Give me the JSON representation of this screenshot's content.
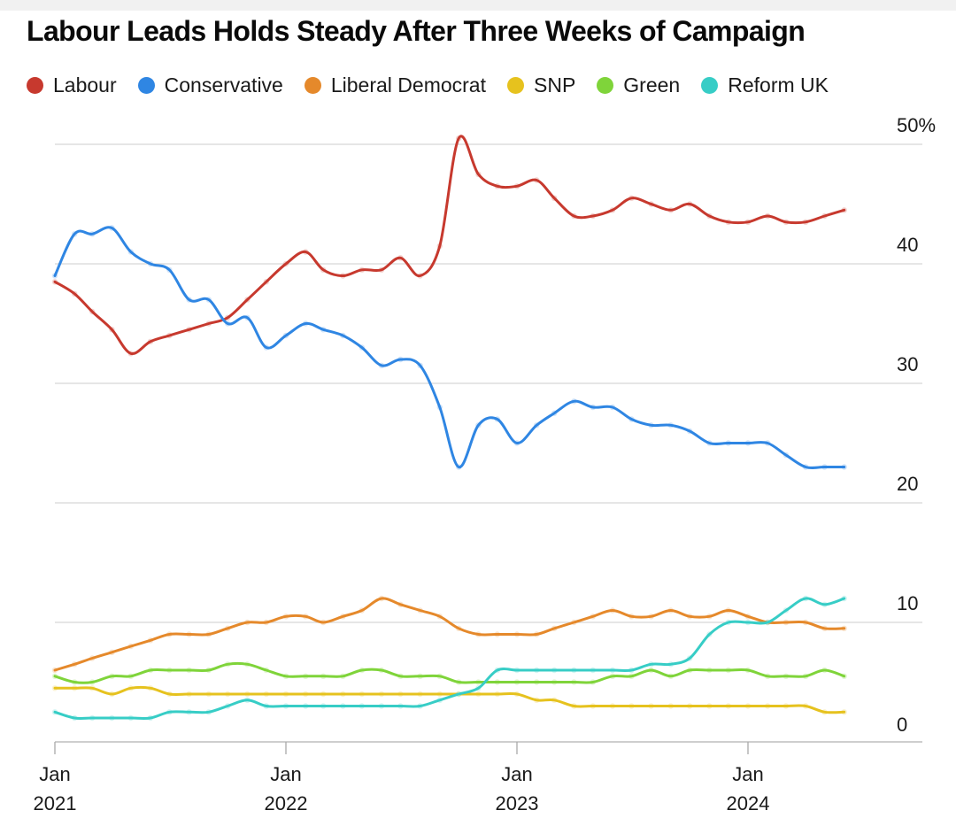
{
  "colors": {
    "Labour": "#c7392e",
    "Conservative": "#2f86e3",
    "Liberal Democrat": "#e5892b",
    "SNP": "#e6c21e",
    "Green": "#7fd43a",
    "Reform UK": "#37cdc6",
    "grid": "#d8d8d8",
    "axis": "#999999"
  },
  "chart_data": {
    "type": "line",
    "title": "Labour Leads Holds Steady After Three Weeks of Campaign",
    "legend_position": "top",
    "grid": true,
    "y_axis_side": "right",
    "ylim": [
      0,
      50
    ],
    "y_ticks": [
      0,
      10,
      20,
      30,
      40,
      50
    ],
    "y_tick_labels": [
      "0",
      "10",
      "20",
      "30",
      "40",
      "50%"
    ],
    "x_ticks": [
      {
        "date": "2021-01",
        "label_top": "Jan",
        "label_bottom": "2021"
      },
      {
        "date": "2022-01",
        "label_top": "Jan",
        "label_bottom": "2022"
      },
      {
        "date": "2023-01",
        "label_top": "Jan",
        "label_bottom": "2023"
      },
      {
        "date": "2024-01",
        "label_top": "Jan",
        "label_bottom": "2024"
      }
    ],
    "x": [
      "2021-01",
      "2021-02",
      "2021-03",
      "2021-04",
      "2021-05",
      "2021-06",
      "2021-07",
      "2021-08",
      "2021-09",
      "2021-10",
      "2021-11",
      "2021-12",
      "2022-01",
      "2022-02",
      "2022-03",
      "2022-04",
      "2022-05",
      "2022-06",
      "2022-07",
      "2022-08",
      "2022-09",
      "2022-10",
      "2022-11",
      "2022-12",
      "2023-01",
      "2023-02",
      "2023-03",
      "2023-04",
      "2023-05",
      "2023-06",
      "2023-07",
      "2023-08",
      "2023-09",
      "2023-10",
      "2023-11",
      "2023-12",
      "2024-01",
      "2024-02",
      "2024-03",
      "2024-04",
      "2024-05",
      "2024-06"
    ],
    "series": [
      {
        "name": "Labour",
        "values": [
          38.5,
          37.5,
          36,
          34.5,
          32.5,
          33.5,
          34,
          34.5,
          35,
          35.5,
          37,
          38.5,
          40,
          41,
          39.5,
          39,
          39.5,
          39.5,
          40.5,
          39,
          41.5,
          50.5,
          47.5,
          46.5,
          46.5,
          47,
          45.5,
          44,
          44,
          44.5,
          45.5,
          45,
          44.5,
          45,
          44,
          43.5,
          43.5,
          44,
          43.5,
          43.5,
          44,
          44.5
        ]
      },
      {
        "name": "Conservative",
        "values": [
          39,
          42.5,
          42.5,
          43,
          41,
          40,
          39.5,
          37,
          37,
          35,
          35.5,
          33,
          34,
          35,
          34.5,
          34,
          33,
          31.5,
          32,
          31.5,
          28,
          23,
          26.5,
          27,
          25,
          26.5,
          27.5,
          28.5,
          28,
          28,
          27,
          26.5,
          26.5,
          26,
          25,
          25,
          25,
          25,
          24,
          23,
          23,
          23
        ]
      },
      {
        "name": "Liberal Democrat",
        "values": [
          6,
          6.5,
          7,
          7.5,
          8,
          8.5,
          9,
          9,
          9,
          9.5,
          10,
          10,
          10.5,
          10.5,
          10,
          10.5,
          11,
          12,
          11.5,
          11,
          10.5,
          9.5,
          9,
          9,
          9,
          9,
          9.5,
          10,
          10.5,
          11,
          10.5,
          10.5,
          11,
          10.5,
          10.5,
          11,
          10.5,
          10,
          10,
          10,
          9.5,
          9.5
        ]
      },
      {
        "name": "SNP",
        "values": [
          4.5,
          4.5,
          4.5,
          4,
          4.5,
          4.5,
          4,
          4,
          4,
          4,
          4,
          4,
          4,
          4,
          4,
          4,
          4,
          4,
          4,
          4,
          4,
          4,
          4,
          4,
          4,
          3.5,
          3.5,
          3,
          3,
          3,
          3,
          3,
          3,
          3,
          3,
          3,
          3,
          3,
          3,
          3,
          2.5,
          2.5
        ]
      },
      {
        "name": "Green",
        "values": [
          5.5,
          5,
          5,
          5.5,
          5.5,
          6,
          6,
          6,
          6,
          6.5,
          6.5,
          6,
          5.5,
          5.5,
          5.5,
          5.5,
          6,
          6,
          5.5,
          5.5,
          5.5,
          5,
          5,
          5,
          5,
          5,
          5,
          5,
          5,
          5.5,
          5.5,
          6,
          5.5,
          6,
          6,
          6,
          6,
          5.5,
          5.5,
          5.5,
          6,
          5.5
        ]
      },
      {
        "name": "Reform UK",
        "values": [
          2.5,
          2,
          2,
          2,
          2,
          2,
          2.5,
          2.5,
          2.5,
          3,
          3.5,
          3,
          3,
          3,
          3,
          3,
          3,
          3,
          3,
          3,
          3.5,
          4,
          4.5,
          6,
          6,
          6,
          6,
          6,
          6,
          6,
          6,
          6.5,
          6.5,
          7,
          9,
          10,
          10,
          10,
          11,
          12,
          11.5,
          12
        ]
      }
    ]
  }
}
